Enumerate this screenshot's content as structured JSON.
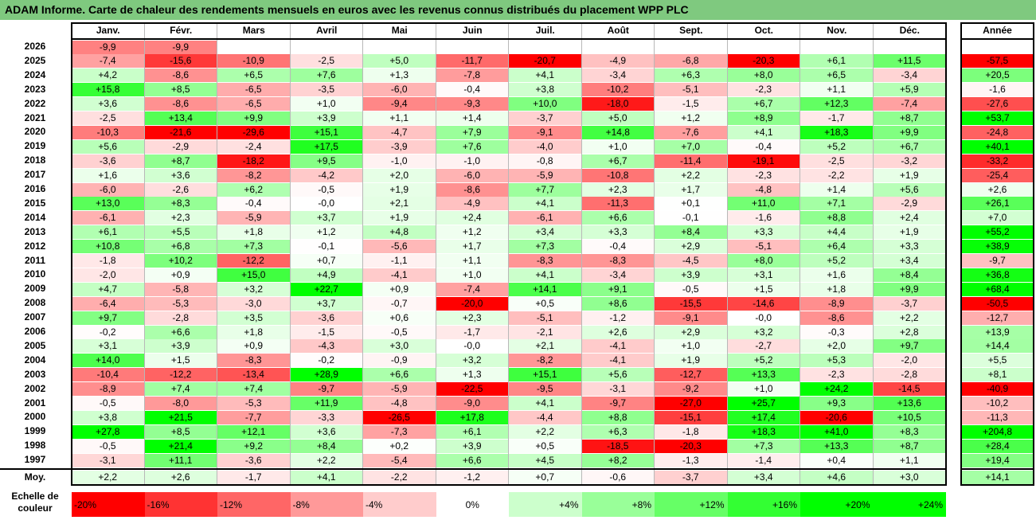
{
  "title": "ADAM Informe. Carte de chaleur des rendements mensuels en euros avec les revenus connus distribués du placement WPP PLC",
  "chart_data": {
    "type": "heatmap",
    "title": "ADAM Informe. Carte de chaleur des rendements mensuels en euros avec les revenus connus distribués du placement WPP PLC",
    "columns": [
      "Janv.",
      "Févr.",
      "Mars",
      "Avril",
      "Mai",
      "Juin",
      "Juil.",
      "Août",
      "Sept.",
      "Oct.",
      "Nov.",
      "Déc."
    ],
    "year_header": "Année",
    "rows": [
      {
        "year": "2026",
        "months": [
          "-9,9",
          "-9,9",
          "",
          "",
          "",
          "",
          "",
          "",
          "",
          "",
          "",
          ""
        ],
        "annual": ""
      },
      {
        "year": "2025",
        "months": [
          "-7,4",
          "-15,6",
          "-10,9",
          "-2,5",
          "+5,0",
          "-11,7",
          "-20,7",
          "-4,9",
          "-6,8",
          "-20,3",
          "+6,1",
          "+11,5"
        ],
        "annual": "-57,5"
      },
      {
        "year": "2024",
        "months": [
          "+4,2",
          "-8,6",
          "+6,5",
          "+7,6",
          "+1,3",
          "-7,8",
          "+4,1",
          "-3,4",
          "+6,3",
          "+8,0",
          "+6,5",
          "-3,4"
        ],
        "annual": "+20,5"
      },
      {
        "year": "2023",
        "months": [
          "+15,8",
          "+8,5",
          "-6,5",
          "-3,5",
          "-6,0",
          "-0,4",
          "+3,8",
          "-10,2",
          "-5,1",
          "-2,3",
          "+1,1",
          "+5,9"
        ],
        "annual": "-1,6"
      },
      {
        "year": "2022",
        "months": [
          "+3,6",
          "-8,6",
          "-6,5",
          "+1,0",
          "-9,4",
          "-9,3",
          "+10,0",
          "-18,0",
          "-1,5",
          "+6,7",
          "+12,3",
          "-7,4"
        ],
        "annual": "-27,6"
      },
      {
        "year": "2021",
        "months": [
          "-2,5",
          "+13,4",
          "+9,9",
          "+3,9",
          "+1,1",
          "+1,4",
          "-3,7",
          "+5,0",
          "+1,2",
          "+8,9",
          "-1,7",
          "+8,7"
        ],
        "annual": "+53,7"
      },
      {
        "year": "2020",
        "months": [
          "-10,3",
          "-21,6",
          "-29,6",
          "+15,1",
          "-4,7",
          "+7,9",
          "-9,1",
          "+14,8",
          "-7,6",
          "+4,1",
          "+18,3",
          "+9,9"
        ],
        "annual": "-24,8"
      },
      {
        "year": "2019",
        "months": [
          "+5,6",
          "-2,9",
          "-2,4",
          "+17,5",
          "-3,9",
          "+7,6",
          "-4,0",
          "+1,0",
          "+7,0",
          "-0,4",
          "+5,2",
          "+6,7"
        ],
        "annual": "+40,1"
      },
      {
        "year": "2018",
        "months": [
          "-3,6",
          "+8,7",
          "-18,2",
          "+9,5",
          "-1,0",
          "-1,0",
          "-0,8",
          "+6,7",
          "-11,4",
          "-19,1",
          "-2,5",
          "-3,2"
        ],
        "annual": "-33,2"
      },
      {
        "year": "2017",
        "months": [
          "+1,6",
          "+3,6",
          "-8,2",
          "-4,2",
          "+2,0",
          "-6,0",
          "-5,9",
          "-10,8",
          "+2,2",
          "-2,3",
          "-2,2",
          "+1,9"
        ],
        "annual": "-25,4"
      },
      {
        "year": "2016",
        "months": [
          "-6,0",
          "-2,6",
          "+6,2",
          "-0,5",
          "+1,9",
          "-8,6",
          "+7,7",
          "+2,3",
          "+1,7",
          "-4,8",
          "+1,4",
          "+5,6"
        ],
        "annual": "+2,6"
      },
      {
        "year": "2015",
        "months": [
          "+13,0",
          "+8,3",
          "-0,4",
          "-0,0",
          "+2,1",
          "-4,9",
          "+4,1",
          "-11,3",
          "+0,1",
          "+11,0",
          "+7,1",
          "-2,9"
        ],
        "annual": "+26,1"
      },
      {
        "year": "2014",
        "months": [
          "-6,1",
          "+2,3",
          "-5,9",
          "+3,7",
          "+1,9",
          "+2,4",
          "-6,1",
          "+6,6",
          "-0,1",
          "-1,6",
          "+8,8",
          "+2,4"
        ],
        "annual": "+7,0"
      },
      {
        "year": "2013",
        "months": [
          "+6,1",
          "+5,5",
          "+1,8",
          "+1,2",
          "+4,8",
          "+1,2",
          "+3,4",
          "+3,3",
          "+8,4",
          "+3,3",
          "+4,4",
          "+1,9"
        ],
        "annual": "+55,2"
      },
      {
        "year": "2012",
        "months": [
          "+10,8",
          "+6,8",
          "+7,3",
          "-0,1",
          "-5,6",
          "+1,7",
          "+7,3",
          "-0,4",
          "+2,9",
          "-5,1",
          "+6,4",
          "+3,3"
        ],
        "annual": "+38,9"
      },
      {
        "year": "2011",
        "months": [
          "-1,8",
          "+10,2",
          "-12,2",
          "+0,7",
          "-1,1",
          "+1,1",
          "-8,3",
          "-8,3",
          "-4,5",
          "+8,0",
          "+5,2",
          "+3,4"
        ],
        "annual": "-9,7"
      },
      {
        "year": "2010",
        "months": [
          "-2,0",
          "+0,9",
          "+15,0",
          "+4,9",
          "-4,1",
          "+1,0",
          "+4,1",
          "-3,4",
          "+3,9",
          "+3,1",
          "+1,6",
          "+8,4"
        ],
        "annual": "+36,8"
      },
      {
        "year": "2009",
        "months": [
          "+4,7",
          "-5,8",
          "+3,2",
          "+22,7",
          "+0,9",
          "-7,4",
          "+14,1",
          "+9,1",
          "-0,5",
          "+1,5",
          "+1,8",
          "+9,9"
        ],
        "annual": "+68,4"
      },
      {
        "year": "2008",
        "months": [
          "-6,4",
          "-5,3",
          "-3,0",
          "+3,7",
          "-0,7",
          "-20,0",
          "+0,5",
          "+8,6",
          "-15,5",
          "-14,6",
          "-8,9",
          "-3,7"
        ],
        "annual": "-50,5"
      },
      {
        "year": "2007",
        "months": [
          "+9,7",
          "-2,8",
          "+3,5",
          "-3,6",
          "+0,6",
          "+2,3",
          "-5,1",
          "-1,2",
          "-9,1",
          "-0,0",
          "-8,6",
          "+2,2"
        ],
        "annual": "-12,7"
      },
      {
        "year": "2006",
        "months": [
          "-0,2",
          "+6,6",
          "+1,8",
          "-1,5",
          "-0,5",
          "-1,7",
          "-2,1",
          "+2,6",
          "+2,9",
          "+3,2",
          "-0,3",
          "+2,8"
        ],
        "annual": "+13,9"
      },
      {
        "year": "2005",
        "months": [
          "+3,1",
          "+3,9",
          "+0,9",
          "-4,3",
          "+3,0",
          "-0,0",
          "+2,1",
          "-4,1",
          "+1,0",
          "-2,7",
          "+2,0",
          "+9,7"
        ],
        "annual": "+14,4"
      },
      {
        "year": "2004",
        "months": [
          "+14,0",
          "+1,5",
          "-8,3",
          "-0,2",
          "-0,9",
          "+3,2",
          "-8,2",
          "-4,1",
          "+1,9",
          "+5,2",
          "+5,3",
          "-2,0"
        ],
        "annual": "+5,5"
      },
      {
        "year": "2003",
        "months": [
          "-10,4",
          "-12,2",
          "-13,4",
          "+28,9",
          "+6,6",
          "+1,3",
          "+15,1",
          "+5,6",
          "-12,7",
          "+13,3",
          "-2,3",
          "-2,8"
        ],
        "annual": "+8,1"
      },
      {
        "year": "2002",
        "months": [
          "-8,9",
          "+7,4",
          "+7,4",
          "-9,7",
          "-5,9",
          "-22,5",
          "-9,5",
          "-3,1",
          "-9,2",
          "+1,0",
          "+24,2",
          "-14,5"
        ],
        "annual": "-40,9"
      },
      {
        "year": "2001",
        "months": [
          "-0,5",
          "-8,0",
          "-5,3",
          "+11,9",
          "-4,8",
          "-9,0",
          "+4,1",
          "-9,7",
          "-27,0",
          "+25,7",
          "+9,3",
          "+13,6"
        ],
        "annual": "-10,2"
      },
      {
        "year": "2000",
        "months": [
          "+3,8",
          "+21,5",
          "-7,7",
          "-3,3",
          "-26,5",
          "+17,8",
          "-4,4",
          "+8,8",
          "-15,1",
          "+17,4",
          "-20,6",
          "+10,5"
        ],
        "annual": "-11,3"
      },
      {
        "year": "1999",
        "months": [
          "+27,8",
          "+8,5",
          "+12,1",
          "+3,6",
          "-7,3",
          "+6,1",
          "+2,2",
          "+6,3",
          "-1,8",
          "+18,3",
          "+41,0",
          "+8,3"
        ],
        "annual": "+204,8"
      },
      {
        "year": "1998",
        "months": [
          "-0,5",
          "+21,4",
          "+9,2",
          "+8,4",
          "+0,2",
          "+3,9",
          "+0,5",
          "-18,5",
          "-20,3",
          "+7,3",
          "+13,3",
          "+8,7"
        ],
        "annual": "+28,4"
      },
      {
        "year": "1997",
        "months": [
          "-3,1",
          "+11,1",
          "-3,6",
          "+2,2",
          "-5,4",
          "+6,6",
          "+4,5",
          "+8,2",
          "-1,3",
          "-1,4",
          "+0,4",
          "+1,1"
        ],
        "annual": "+19,4"
      }
    ],
    "average": {
      "label": "Moy.",
      "months": [
        "+2,2",
        "+2,6",
        "-1,7",
        "+4,1",
        "-2,2",
        "-1,2",
        "+0,7",
        "-0,6",
        "-3,7",
        "+3,4",
        "+4,6",
        "+3,0"
      ],
      "annual": "+14,1"
    },
    "scale": {
      "label": "Echelle de couleur",
      "steps": [
        "-20%",
        "-16%",
        "-12%",
        "-8%",
        "-4%",
        "0%",
        "+4%",
        "+8%",
        "+12%",
        "+16%",
        "+20%",
        "+24%"
      ],
      "values": [
        -20,
        -16,
        -12,
        -8,
        -4,
        0,
        4,
        8,
        12,
        16,
        20,
        24
      ]
    },
    "colors": {
      "negative": "#ff0000",
      "positive": "#00ff00",
      "neutral": "#ffffff"
    }
  }
}
